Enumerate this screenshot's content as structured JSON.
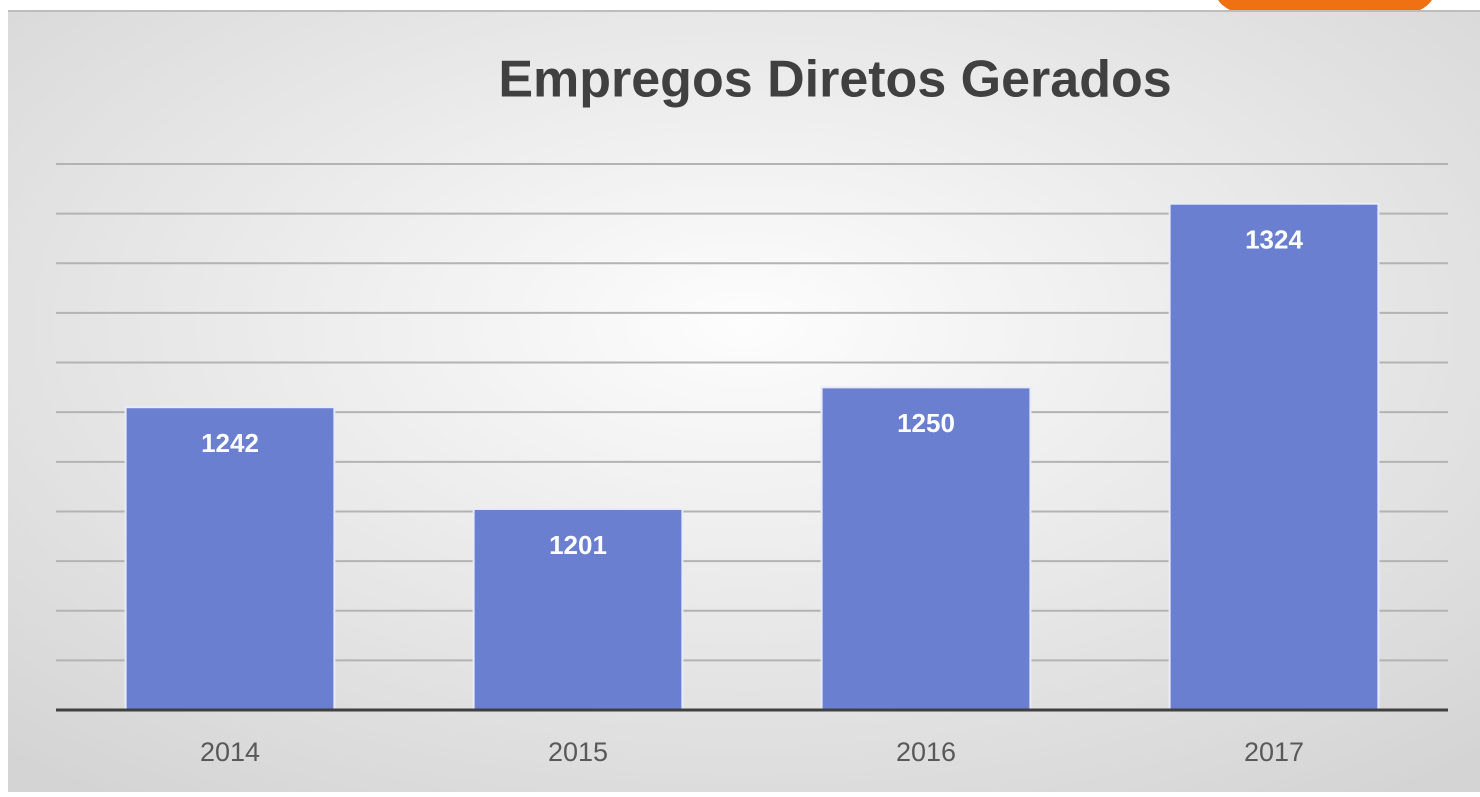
{
  "chart_data": {
    "type": "bar",
    "title": "Empregos Diretos Gerados",
    "categories": [
      "2014",
      "2015",
      "2016",
      "2017"
    ],
    "values": [
      1242,
      1201,
      1250,
      1324
    ],
    "color": "#6a7fcf",
    "ylim": [
      1120,
      1340
    ],
    "yticks": [
      1120,
      1140,
      1160,
      1180,
      1200,
      1220,
      1240,
      1260,
      1280,
      1300,
      1320,
      1340
    ],
    "grid": true
  }
}
